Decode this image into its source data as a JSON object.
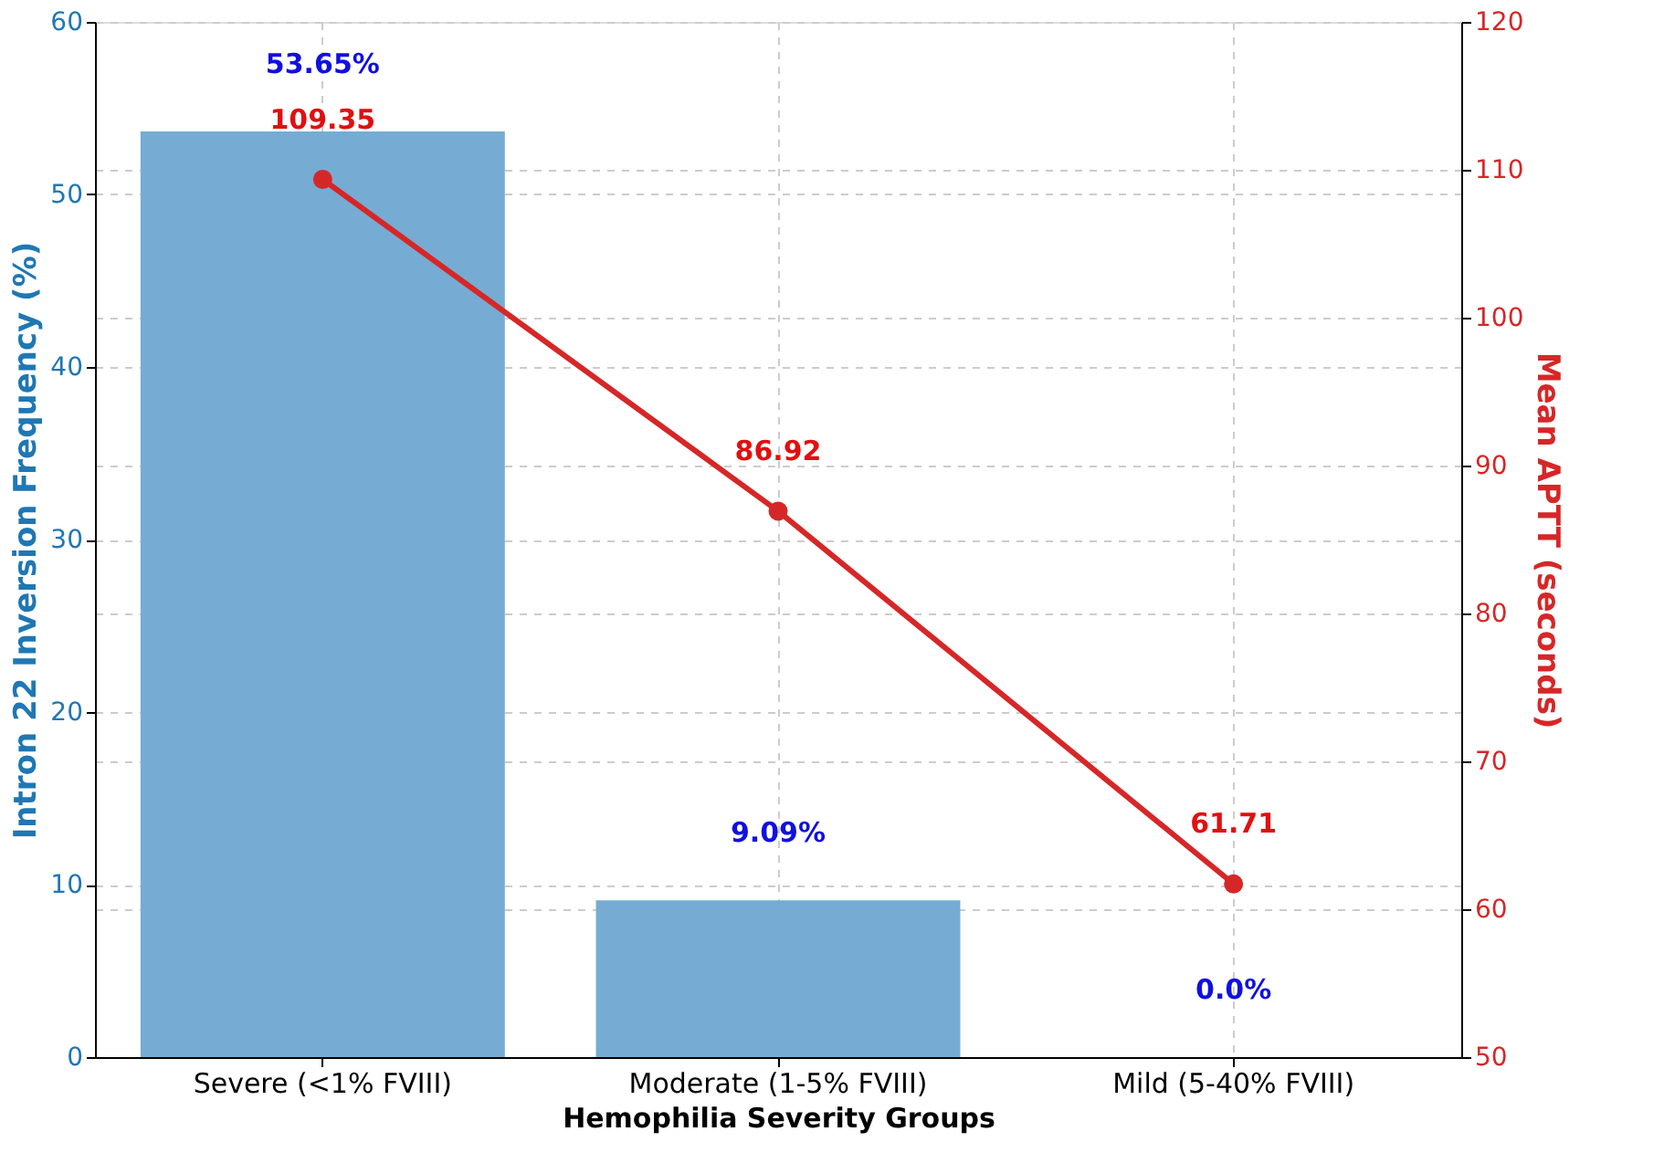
{
  "chart_data": {
    "type": "bar",
    "xlabel": "Hemophilia Severity Groups",
    "ylabel": "Intron 22 Inversion Frequency (%)",
    "y2label": "Mean APTT (seconds)",
    "categories": [
      "Severe (<1% FVIII)",
      "Moderate (1-5% FVIII)",
      "Mild (5-40% FVIII)"
    ],
    "series": [
      {
        "color": "#76acd3",
        "values": [
          53.65,
          9.09,
          0.0
        ],
        "value_labels": [
          "53.65%",
          "9.09%",
          "0.0%"
        ]
      },
      {
        "type": "line",
        "axis": "y2",
        "color": "#d62728",
        "values": [
          109.35,
          86.92,
          61.71
        ],
        "value_labels": [
          "109.35",
          "86.92",
          "61.71"
        ]
      }
    ],
    "ylim": [
      0,
      60
    ],
    "yticks": [
      0,
      10,
      20,
      30,
      40,
      50,
      60
    ],
    "y2lim": [
      50,
      120
    ],
    "y2ticks": [
      50,
      60,
      70,
      80,
      90,
      100,
      110,
      120
    ],
    "grid": true,
    "marker": "circle",
    "line_style": "solid"
  }
}
